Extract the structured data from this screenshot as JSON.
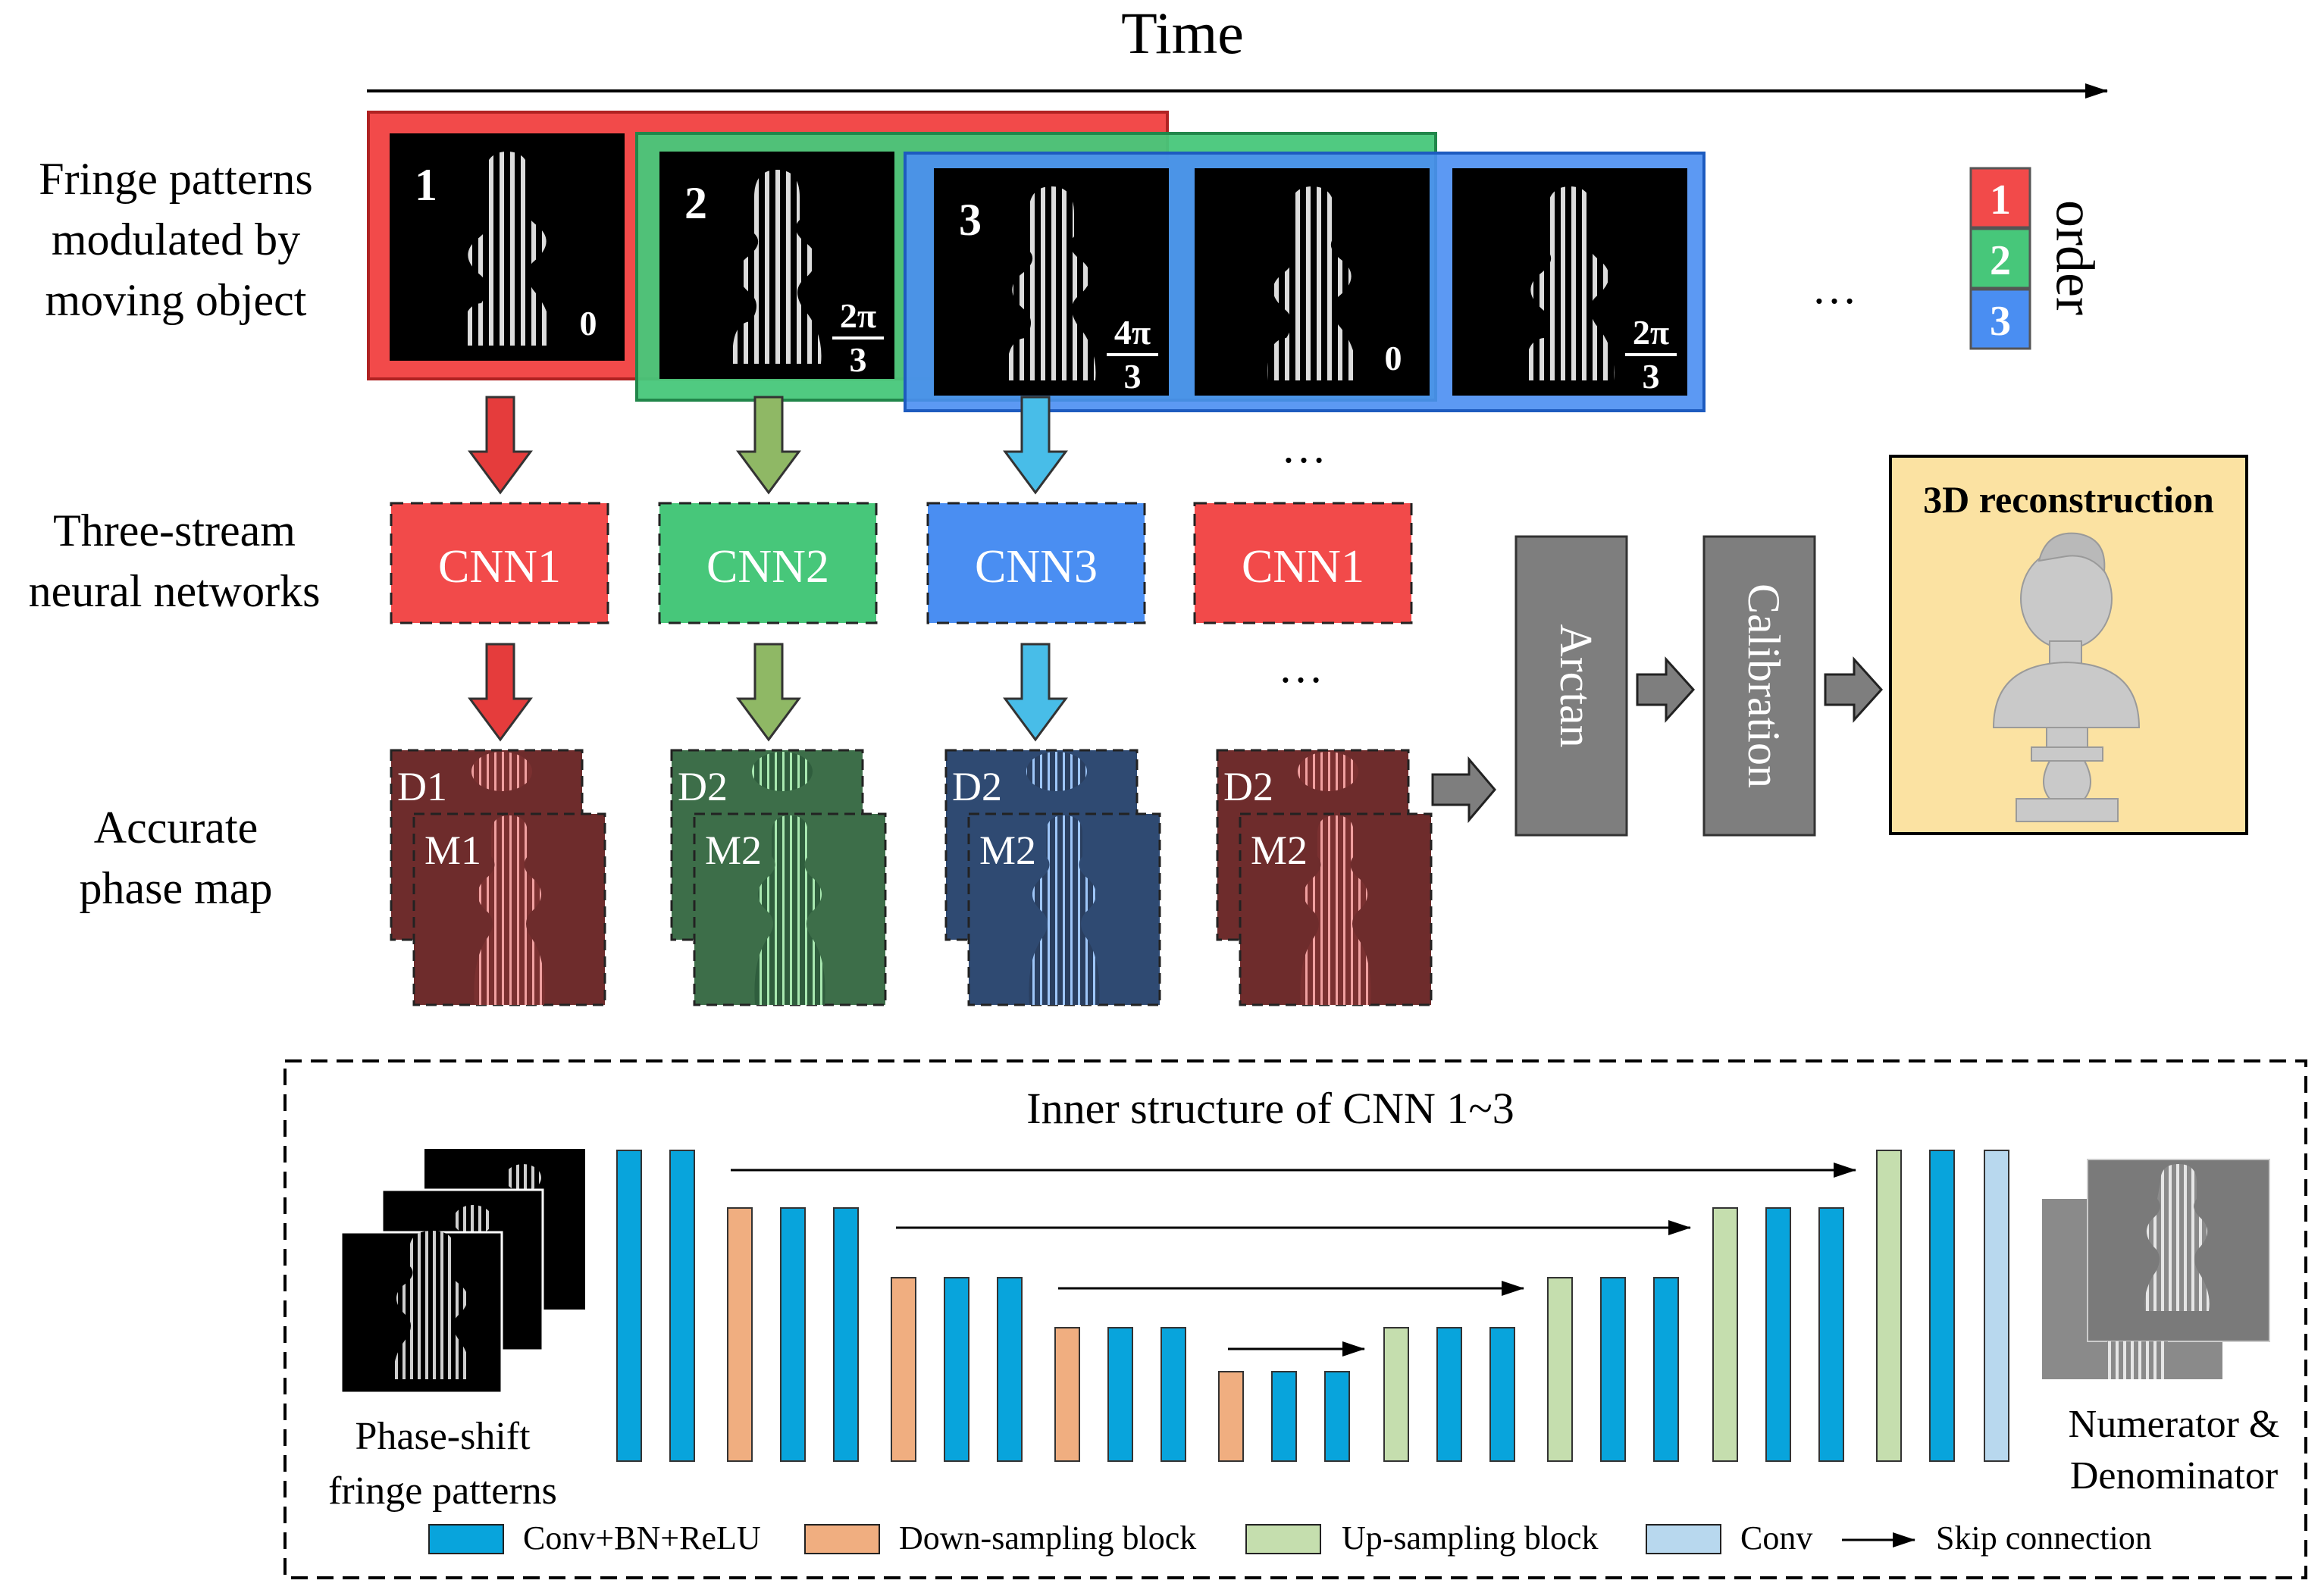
{
  "header": {
    "time_label": "Time"
  },
  "row_labels": {
    "fringe": [
      "Fringe patterns",
      "modulated by",
      "moving object"
    ],
    "networks": [
      "Three-stream",
      "neural networks"
    ],
    "phase": [
      "Accurate",
      "phase map"
    ]
  },
  "frames": [
    {
      "index": "1",
      "shift_top": "",
      "shift_bottom": "0"
    },
    {
      "index": "2",
      "shift_top": "2π",
      "shift_bottom": "3"
    },
    {
      "index": "3",
      "shift_top": "4π",
      "shift_bottom": "3"
    },
    {
      "index": "",
      "shift_top": "",
      "shift_bottom": "0"
    },
    {
      "index": "",
      "shift_top": "2π",
      "shift_bottom": "3"
    }
  ],
  "ellipsis": "…",
  "order_legend": {
    "items": [
      "1",
      "2",
      "3"
    ],
    "label": "order"
  },
  "cnn_boxes": [
    "CNN1",
    "CNN2",
    "CNN3",
    "CNN1"
  ],
  "phase_maps": [
    {
      "d": "D1",
      "m": "M1"
    },
    {
      "d": "D2",
      "m": "M2"
    },
    {
      "d": "D2",
      "m": "M2"
    },
    {
      "d": "D2",
      "m": "M2"
    }
  ],
  "pipeline": {
    "arctan": "Arctan",
    "calibration": "Calibration",
    "recon_title": "3D reconstruction"
  },
  "inner": {
    "title": "Inner structure of CNN 1~3",
    "input_label": [
      "Phase-shift",
      "fringe patterns"
    ],
    "output_label": [
      "Numerator &",
      "Denominator"
    ]
  },
  "legend": {
    "conv_bn_relu": "Conv+BN+ReLU",
    "down": "Down-sampling block",
    "up": "Up-sampling block",
    "conv": "Conv",
    "skip": "Skip connection"
  },
  "colors": {
    "red": "#f24a4a",
    "green": "#47c77a",
    "blue": "#4a8ef2",
    "arrow_red": "#e53c3c",
    "arrow_green": "#8fb865",
    "arrow_blue": "#48bde8",
    "conv": "#08a4dc",
    "down": "#f0ae80",
    "up": "#c5deae",
    "conv_light": "#b8d8ee",
    "gray_block": "#7e7e7e",
    "recon_bg": "#fbe2a2"
  }
}
